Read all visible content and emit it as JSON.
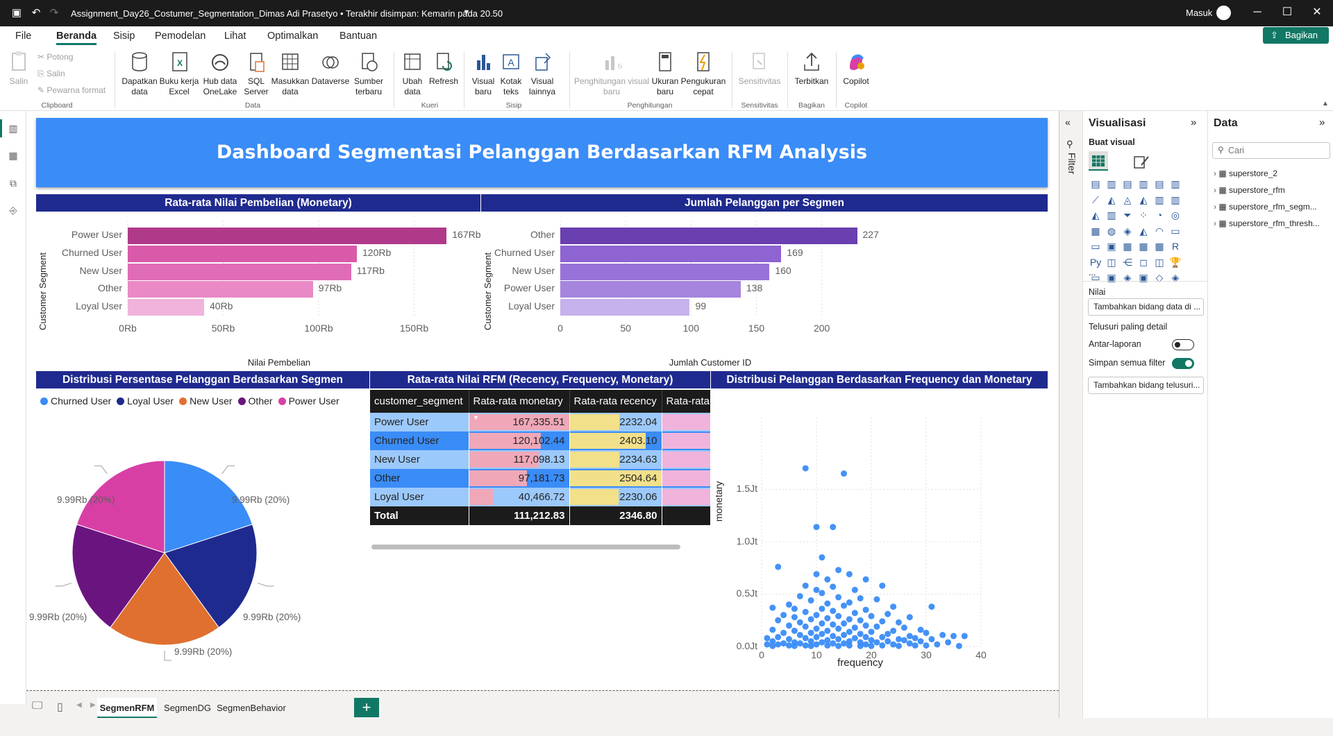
{
  "app": {
    "document_title": "Assignment_Day26_Costumer_Segmentation_Dimas Adi Prasetyo • Terakhir disimpan: Kemarin pada 20.50",
    "signin": "Masuk",
    "share": "Bagikan"
  },
  "menu": [
    "File",
    "Beranda",
    "Sisip",
    "Pemodelan",
    "Lihat",
    "Optimalkan",
    "Bantuan"
  ],
  "ribbon": {
    "clipboard": {
      "paste": "Salin",
      "cut": "Potong",
      "copy": "Salin",
      "format": "Pewarna format",
      "group": "Clipboard"
    },
    "data": {
      "get_data": "Dapatkan data",
      "excel": "Buku kerja Excel",
      "onelake": "Hub data OneLake",
      "sql": "SQL Server",
      "enter": "Masukkan data",
      "dataverse": "Dataverse",
      "recent": "Sumber terbaru",
      "group": "Data"
    },
    "queries": {
      "transform": "Ubah data",
      "refresh": "Refresh",
      "group": "Kueri"
    },
    "insert": {
      "new_visual": "Visual baru",
      "textbox": "Kotak teks",
      "more": "Visual lainnya",
      "group": "Sisip"
    },
    "calc": {
      "visual_calc": "Penghitungan visual baru",
      "measure": "Ukuran baru",
      "quick": "Pengukuran cepat",
      "group": "Penghitungan"
    },
    "sens": {
      "label": "Sensitivitas",
      "group": "Sensitivitas"
    },
    "share": {
      "publish": "Terbitkan",
      "group": "Bagikan"
    },
    "copilot": {
      "label": "Copilot",
      "group": "Copilot"
    }
  },
  "dashboard": {
    "title": "Dashboard Segmentasi Pelanggan Berdasarkan RFM Analysis",
    "v1_title": "Rata-rata Nilai Pembelian (Monetary)",
    "v2_title": "Jumlah Pelanggan per Segmen",
    "v3_title": "Distribusi Persentase Pelanggan Berdasarkan Segmen",
    "v4_title": "Rata-rata Nilai RFM (Recency, Frequency, Monetary)",
    "v5_title": "Distribusi Pelanggan Berdasarkan Frequency dan Monetary"
  },
  "chart_data": [
    {
      "type": "bar",
      "orientation": "horizontal",
      "categories": [
        "Power User",
        "Churned User",
        "New User",
        "Other",
        "Loyal User"
      ],
      "values": [
        167,
        120,
        117,
        97,
        40
      ],
      "value_labels": [
        "167Rb",
        "120Rb",
        "117Rb",
        "97Rb",
        "40Rb"
      ],
      "colors": [
        "#b03a8a",
        "#d95aa8",
        "#e06cb6",
        "#e98ac6",
        "#f0b4dc"
      ],
      "xlabel": "Nilai Pembelian",
      "ylabel": "Customer Segment",
      "xticks": [
        "0Rb",
        "50Rb",
        "100Rb",
        "150Rb"
      ],
      "xlim": [
        0,
        180
      ]
    },
    {
      "type": "bar",
      "orientation": "horizontal",
      "categories": [
        "Other",
        "Churned User",
        "New User",
        "Power User",
        "Loyal User"
      ],
      "values": [
        227,
        169,
        160,
        138,
        99
      ],
      "colors": [
        "#6a3fb0",
        "#8e63d2",
        "#9872d8",
        "#a585de",
        "#c6b2ec"
      ],
      "xlabel": "Jumlah Customer ID",
      "ylabel": "Customer Segment",
      "xticks": [
        "0",
        "50",
        "100",
        "150",
        "200"
      ],
      "xlim": [
        0,
        240
      ]
    },
    {
      "type": "pie",
      "legend": [
        "Churned User",
        "Loyal User",
        "New User",
        "Other",
        "Power User"
      ],
      "legend_colors": [
        "#3a8cf7",
        "#1f2a8f",
        "#e07030",
        "#6a1480",
        "#d83fa5"
      ],
      "slices": [
        {
          "name": "Churned User",
          "value": 20,
          "label": "9.99Rb (20%)",
          "color": "#3a8cf7"
        },
        {
          "name": "Loyal User",
          "value": 20,
          "label": "9.99Rb (20%)",
          "color": "#1f2a8f"
        },
        {
          "name": "New User",
          "value": 20,
          "label": "9.99Rb (20%)",
          "color": "#e07030"
        },
        {
          "name": "Other",
          "value": 20,
          "label": "9.99Rb (20%)",
          "color": "#6a1480"
        },
        {
          "name": "Power User",
          "value": 20,
          "label": "9.99Rb (20%)",
          "color": "#d83fa5"
        }
      ],
      "legend_position": "top-left"
    },
    {
      "type": "table",
      "columns": [
        "customer_segment",
        "Rata-rata monetary",
        "Rata-rata recency",
        "Rata-rata fr"
      ],
      "rows": [
        [
          "Power User",
          "167,335.51",
          "2232.04"
        ],
        [
          "Churned User",
          "120,102.44",
          "2403.10"
        ],
        [
          "New User",
          "117,098.13",
          "2234.63"
        ],
        [
          "Other",
          "97,181.73",
          "2504.64"
        ],
        [
          "Loyal User",
          "40,466.72",
          "2230.06"
        ]
      ],
      "monetary": [
        167335.51,
        120102.44,
        117098.13,
        97181.73,
        40466.72
      ],
      "recency": [
        2232.04,
        2403.1,
        2234.63,
        2504.64,
        2230.06
      ],
      "frequency_fraction": [
        1.0,
        0.9,
        0.78,
        0.68,
        1.0
      ],
      "total": [
        "Total",
        "111,212.83",
        "2346.80",
        ""
      ]
    },
    {
      "type": "scatter",
      "xlabel": "frequency",
      "ylabel": "monetary",
      "xlim": [
        0,
        40
      ],
      "ylim": [
        0,
        1800000
      ],
      "xticks": [
        "0",
        "10",
        "20",
        "30",
        "40"
      ],
      "yticks": [
        "0.0Jt",
        "0.5Jt",
        "1.0Jt",
        "1.5Jt"
      ],
      "color": "#3a8cf7",
      "points": [
        [
          8,
          1700000
        ],
        [
          15,
          1650000
        ],
        [
          10,
          1140000
        ],
        [
          13,
          1140000
        ],
        [
          11,
          850000
        ],
        [
          3,
          760000
        ],
        [
          14,
          730000
        ],
        [
          10,
          690000
        ],
        [
          16,
          690000
        ],
        [
          12,
          640000
        ],
        [
          19,
          640000
        ],
        [
          22,
          580000
        ],
        [
          8,
          580000
        ],
        [
          13,
          570000
        ],
        [
          17,
          540000
        ],
        [
          10,
          540000
        ],
        [
          11,
          510000
        ],
        [
          7,
          480000
        ],
        [
          14,
          470000
        ],
        [
          18,
          460000
        ],
        [
          21,
          450000
        ],
        [
          9,
          440000
        ],
        [
          16,
          420000
        ],
        [
          12,
          410000
        ],
        [
          5,
          400000
        ],
        [
          15,
          390000
        ],
        [
          24,
          380000
        ],
        [
          31,
          380000
        ],
        [
          2,
          370000
        ],
        [
          6,
          360000
        ],
        [
          11,
          360000
        ],
        [
          19,
          350000
        ],
        [
          13,
          340000
        ],
        [
          8,
          330000
        ],
        [
          17,
          320000
        ],
        [
          23,
          310000
        ],
        [
          4,
          300000
        ],
        [
          10,
          300000
        ],
        [
          14,
          290000
        ],
        [
          20,
          290000
        ],
        [
          27,
          280000
        ],
        [
          6,
          280000
        ],
        [
          12,
          270000
        ],
        [
          16,
          260000
        ],
        [
          9,
          260000
        ],
        [
          3,
          250000
        ],
        [
          18,
          250000
        ],
        [
          22,
          240000
        ],
        [
          25,
          230000
        ],
        [
          7,
          230000
        ],
        [
          11,
          220000
        ],
        [
          15,
          220000
        ],
        [
          13,
          210000
        ],
        [
          19,
          200000
        ],
        [
          5,
          200000
        ],
        [
          21,
          190000
        ],
        [
          8,
          190000
        ],
        [
          26,
          180000
        ],
        [
          17,
          180000
        ],
        [
          10,
          170000
        ],
        [
          14,
          170000
        ],
        [
          29,
          160000
        ],
        [
          2,
          160000
        ],
        [
          6,
          150000
        ],
        [
          12,
          150000
        ],
        [
          24,
          150000
        ],
        [
          16,
          140000
        ],
        [
          20,
          140000
        ],
        [
          9,
          130000
        ],
        [
          30,
          130000
        ],
        [
          4,
          130000
        ],
        [
          18,
          120000
        ],
        [
          11,
          120000
        ],
        [
          23,
          120000
        ],
        [
          33,
          110000
        ],
        [
          7,
          110000
        ],
        [
          15,
          110000
        ],
        [
          27,
          100000
        ],
        [
          13,
          100000
        ],
        [
          35,
          100000
        ],
        [
          37,
          100000
        ],
        [
          19,
          90000
        ],
        [
          3,
          90000
        ],
        [
          22,
          90000
        ],
        [
          10,
          90000
        ],
        [
          28,
          80000
        ],
        [
          17,
          80000
        ],
        [
          1,
          80000
        ],
        [
          8,
          80000
        ],
        [
          25,
          70000
        ],
        [
          14,
          70000
        ],
        [
          31,
          70000
        ],
        [
          5,
          70000
        ],
        [
          12,
          60000
        ],
        [
          20,
          60000
        ],
        [
          26,
          60000
        ],
        [
          16,
          50000
        ],
        [
          9,
          50000
        ],
        [
          2,
          50000
        ],
        [
          23,
          50000
        ],
        [
          29,
          50000
        ],
        [
          34,
          40000
        ],
        [
          11,
          40000
        ],
        [
          6,
          40000
        ],
        [
          18,
          40000
        ],
        [
          21,
          40000
        ],
        [
          15,
          30000
        ],
        [
          4,
          30000
        ],
        [
          13,
          30000
        ],
        [
          27,
          30000
        ],
        [
          7,
          30000
        ],
        [
          24,
          20000
        ],
        [
          10,
          20000
        ],
        [
          32,
          20000
        ],
        [
          19,
          20000
        ],
        [
          3,
          20000
        ],
        [
          1,
          20000
        ],
        [
          16,
          10000
        ],
        [
          22,
          10000
        ],
        [
          8,
          10000
        ],
        [
          12,
          10000
        ],
        [
          28,
          10000
        ],
        [
          5,
          10000
        ],
        [
          30,
          10000
        ],
        [
          14,
          5000
        ],
        [
          18,
          5000
        ],
        [
          25,
          5000
        ],
        [
          9,
          5000
        ],
        [
          2,
          5000
        ],
        [
          20,
          5000
        ],
        [
          36,
          5000
        ],
        [
          6,
          5000
        ]
      ]
    }
  ],
  "pages": [
    "SegmenRFM",
    "SegmenDG",
    "SegmenBehavior"
  ],
  "filter_label": "Filter",
  "visualizations": {
    "title": "Visualisasi",
    "build": "Buat visual",
    "values": "Nilai",
    "values_box": "Tambahkan bidang data di ...",
    "drill": "Telusuri paling detail",
    "cross_report": "Antar-laporan",
    "keep_filters": "Simpan semua filter",
    "drill_box": "Tambahkan bidang telusuri...",
    "more": "..."
  },
  "data_pane": {
    "title": "Data",
    "search_placeholder": "Cari",
    "tables": [
      "superstore_2",
      "superstore_rfm",
      "superstore_rfm_segm...",
      "superstore_rfm_thresh..."
    ]
  }
}
